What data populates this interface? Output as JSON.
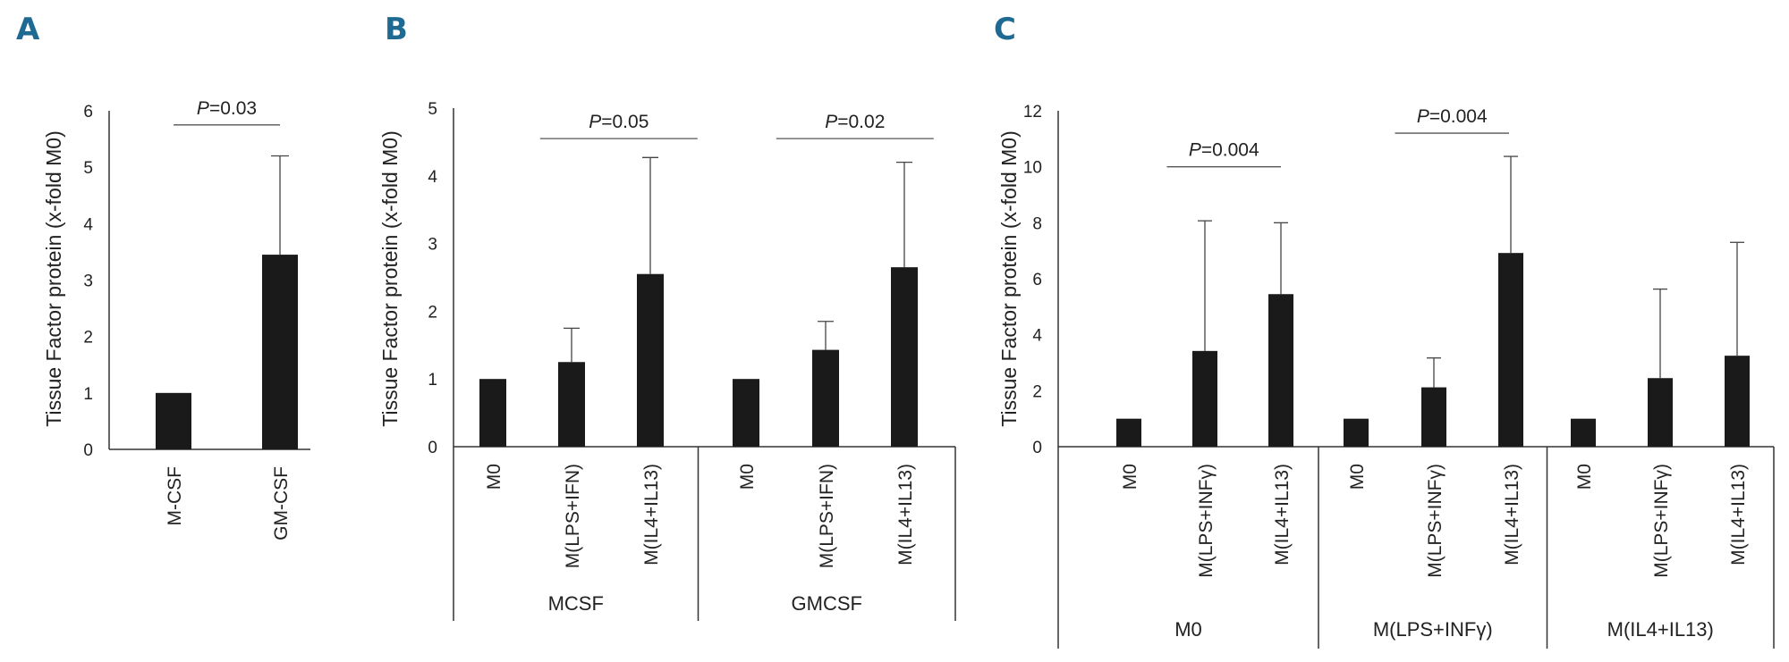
{
  "colors": {
    "bar": "#1a1a1a",
    "axis": "#333333",
    "panel_label": "#1f6a93"
  },
  "chart_data": [
    {
      "panel": "A",
      "type": "bar",
      "ylabel": "Tissue Factor protein (x-fold M0)",
      "ylim": [
        0,
        6
      ],
      "yticks": [
        0,
        1,
        2,
        3,
        4,
        5,
        6
      ],
      "categories": [
        "M-CSF",
        "GM-CSF"
      ],
      "groups": [],
      "values": [
        1.0,
        3.45
      ],
      "errors": [
        0.0,
        1.75
      ],
      "significance": [
        {
          "label": "=0.03",
          "prefix": "P",
          "from": 0,
          "to": 1,
          "y": 5.75
        }
      ]
    },
    {
      "panel": "B",
      "type": "bar",
      "ylabel": "Tissue Factor protein (x-fold M0)",
      "ylim": [
        0,
        5
      ],
      "yticks": [
        0,
        1,
        2,
        3,
        4,
        5
      ],
      "categories": [
        "M0",
        "M(LPS+IFN)",
        "M(IL4+IL13)",
        "M0",
        "M(LPS+IFN)",
        "M(IL4+IL13)"
      ],
      "groups": [
        {
          "name": "MCSF",
          "size": 3
        },
        {
          "name": "GMCSF",
          "size": 3
        }
      ],
      "values": [
        1.0,
        1.25,
        2.55,
        1.0,
        1.43,
        2.65
      ],
      "errors": [
        0.0,
        0.5,
        1.72,
        0.0,
        0.42,
        1.55
      ],
      "significance": [
        {
          "label": "=0.05",
          "prefix": "P",
          "from": 0.6,
          "to": 2.6,
          "y": 4.55
        },
        {
          "label": "=0.02",
          "prefix": "P",
          "from": 3.6,
          "to": 5.6,
          "y": 4.55
        }
      ]
    },
    {
      "panel": "C",
      "type": "bar",
      "ylabel": "Tissue Factor protein (x-fold M0)",
      "ylim": [
        0,
        12
      ],
      "yticks": [
        0,
        2,
        4,
        6,
        8,
        10,
        12
      ],
      "categories": [
        "M0",
        "M(LPS+INFγ)",
        "M(IL4+IL13)",
        "M0",
        "M(LPS+INFγ)",
        "M(IL4+IL13)",
        "M0",
        "M(LPS+INFγ)",
        "M(IL4+IL13)"
      ],
      "groups": [
        {
          "name": "M0",
          "size": 3
        },
        {
          "name": "M(LPS+INFγ)",
          "size": 3
        },
        {
          "name": "M(IL4+IL13)",
          "size": 3
        }
      ],
      "values": [
        1.0,
        3.42,
        5.45,
        1.0,
        2.12,
        6.92,
        1.0,
        2.45,
        3.25
      ],
      "errors": [
        0.0,
        4.65,
        2.55,
        0.0,
        1.05,
        3.45,
        0.0,
        3.18,
        4.05
      ],
      "significance": [
        {
          "label": "=0.004",
          "prefix": "P",
          "from": 0.5,
          "to": 2.0,
          "y": 10.0
        },
        {
          "label": "=0.004",
          "prefix": "P",
          "from": 3.5,
          "to": 5.0,
          "y": 11.2
        }
      ]
    }
  ]
}
